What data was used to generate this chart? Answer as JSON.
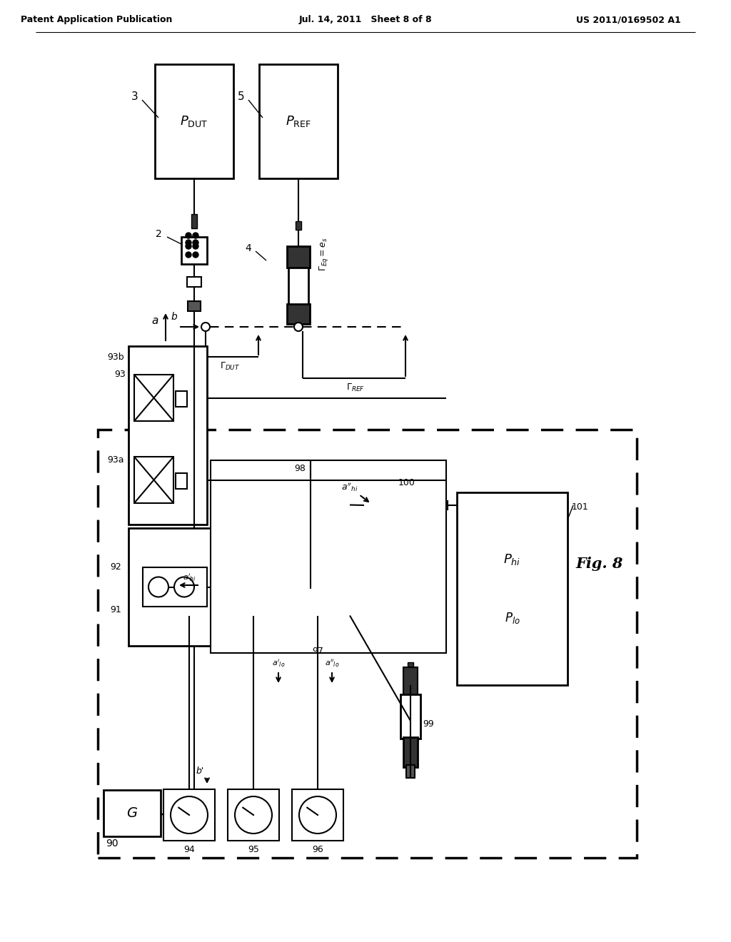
{
  "bg_color": "#ffffff",
  "header_left": "Patent Application Publication",
  "header_center": "Jul. 14, 2011   Sheet 8 of 8",
  "header_right": "US 2011/0169502 A1",
  "fig_label": "Fig. 8",
  "lc": "#000000"
}
